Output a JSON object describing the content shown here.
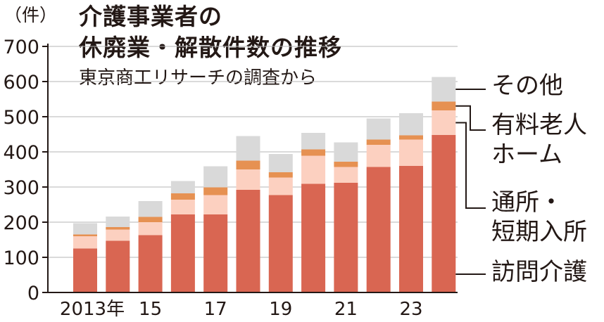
{
  "chart_data": {
    "type": "bar",
    "stacked": true,
    "title_line1": "介護事業者の",
    "title_line2": "休廃業・解散件数の推移",
    "subtitle": "東京商工リサーチの調査から",
    "unit_label": "（件）",
    "categories": [
      "2013",
      "2014",
      "2015",
      "2016",
      "2017",
      "2018",
      "2019",
      "2020",
      "2021",
      "2022",
      "2023",
      "2024"
    ],
    "x_tick_labels": [
      "2013年",
      "",
      "15",
      "",
      "17",
      "",
      "19",
      "",
      "21",
      "",
      "23",
      ""
    ],
    "y_ticks": [
      0,
      100,
      200,
      300,
      400,
      500,
      600,
      700
    ],
    "ylim": [
      0,
      700
    ],
    "grid": true,
    "series": [
      {
        "name": "訪問介護",
        "color": "#d96652",
        "values": [
          125,
          147,
          163,
          222,
          222,
          292,
          277,
          309,
          312,
          357,
          360,
          448
        ]
      },
      {
        "name": "通所・短期入所",
        "color": "#fcd0c0",
        "values": [
          35,
          32,
          37,
          42,
          55,
          58,
          50,
          80,
          45,
          63,
          75,
          70
        ]
      },
      {
        "name": "有料老人ホーム",
        "color": "#e69152",
        "values": [
          5,
          7,
          15,
          18,
          22,
          25,
          15,
          18,
          15,
          15,
          12,
          25
        ]
      },
      {
        "name": "その他",
        "color": "#d9d9d9",
        "values": [
          32,
          30,
          45,
          35,
          60,
          70,
          52,
          47,
          55,
          60,
          63,
          70
        ]
      }
    ],
    "legend": {
      "position": "right",
      "labels": [
        {
          "lines": [
            "その他"
          ]
        },
        {
          "lines": [
            "有料老人",
            "ホーム"
          ]
        },
        {
          "lines": [
            "通所・",
            "短期入所"
          ]
        },
        {
          "lines": [
            "訪問介護"
          ]
        }
      ]
    }
  }
}
